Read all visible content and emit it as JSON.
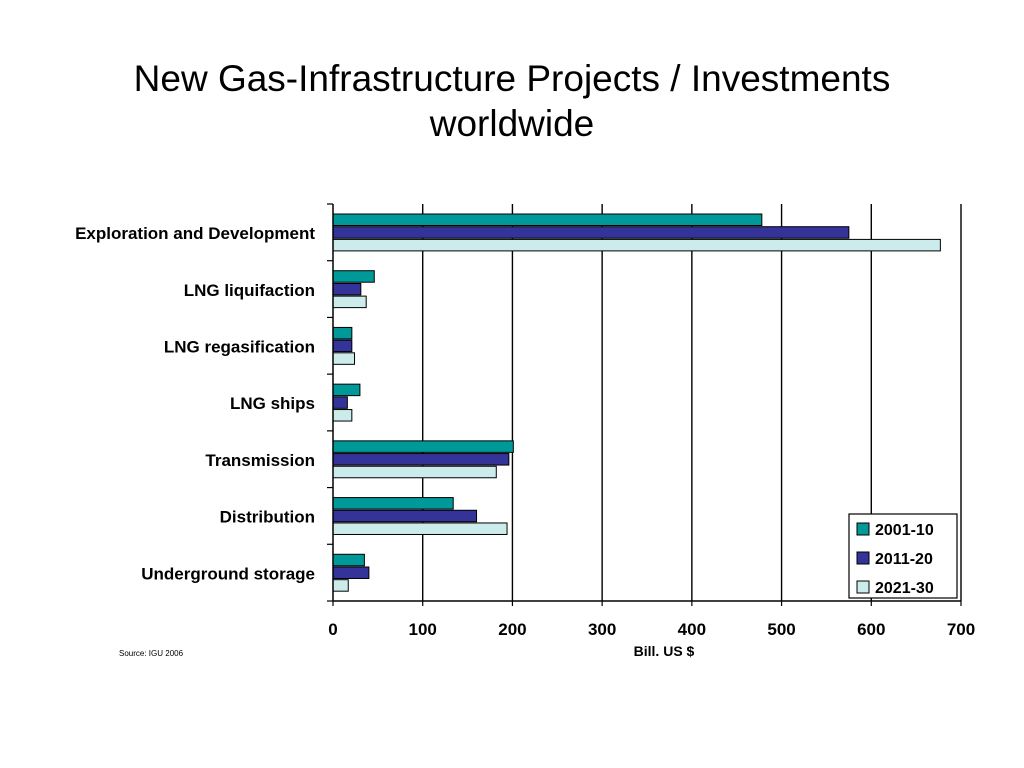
{
  "slide": {
    "title_line1": "New Gas-Infrastructure Projects / Investments",
    "title_line2": "worldwide",
    "source": "Source: IGU 2006"
  },
  "colors": {
    "series": [
      "#009999",
      "#333399",
      "#CCECEC"
    ],
    "stroke": "#000000",
    "gridline": "#000000"
  },
  "chart_data": {
    "type": "bar",
    "orientation": "horizontal",
    "categories": [
      "Exploration and Development",
      "LNG liquifaction",
      "LNG regasification",
      "LNG ships",
      "Transmission",
      "Distribution",
      "Underground storage"
    ],
    "series": [
      {
        "name": "2001-10",
        "values": [
          478,
          46,
          21,
          30,
          201,
          134,
          35
        ]
      },
      {
        "name": "2011-20",
        "values": [
          575,
          31,
          21,
          16,
          196,
          160,
          40
        ]
      },
      {
        "name": "2021-30",
        "values": [
          677,
          37,
          24,
          21,
          182,
          194,
          17
        ]
      }
    ],
    "xlabel": "Bill. US $",
    "ylabel": "",
    "xlim": [
      0,
      700
    ],
    "ticks": [
      0,
      100,
      200,
      300,
      400,
      500,
      600,
      700
    ],
    "grid": "vertical",
    "legend_position": "bottom-right"
  }
}
